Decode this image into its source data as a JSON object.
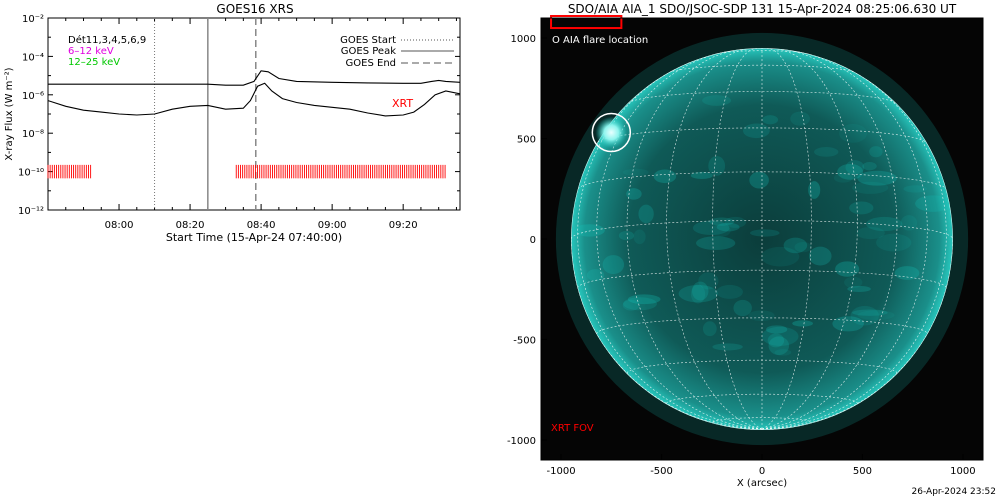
{
  "chart_data": [
    {
      "type": "line",
      "title": "GOES16 XRS",
      "xlabel": "Start Time (15-Apr-24 07:40:00)",
      "ylabel": "X-ray Flux (W m⁻²)",
      "yscale": "log",
      "ylim_exponent": [
        -12,
        -2
      ],
      "y_tick_labels": [
        "10⁻²",
        "10⁻⁴",
        "10⁻⁶",
        "10⁻⁸",
        "10⁻¹⁰",
        "10⁻¹²"
      ],
      "y_tick_exponents": [
        -2,
        -4,
        -6,
        -8,
        -10,
        -12
      ],
      "xlim_minutes_after_0740": [
        0,
        116
      ],
      "x_tick_labels": [
        "08:00",
        "08:20",
        "08:40",
        "09:00",
        "09:20"
      ],
      "x_tick_minutes": [
        20,
        40,
        60,
        80,
        100
      ],
      "info_text": [
        "Dét11,3,4,5,6,9",
        "6–12 keV",
        "12–25 keV"
      ],
      "info_colors": [
        "#000000",
        "#e000e0",
        "#00c800"
      ],
      "legend": [
        {
          "label": "GOES Start",
          "style": "dotted"
        },
        {
          "label": "GOES Peak",
          "style": "solid"
        },
        {
          "label": "GOES End",
          "style": "dashed"
        }
      ],
      "legend_placement": "top-right",
      "vlines_minutes": {
        "start": 30,
        "peak": 45,
        "end": 58.5
      },
      "annotation": "XRT",
      "annotation_color": "#ff0000",
      "xrt_coverage_minutes": [
        [
          0,
          12
        ],
        [
          53,
          112
        ]
      ],
      "series": [
        {
          "color": "#000000",
          "x_minutes": [
            0,
            10,
            20,
            30,
            40,
            45,
            50,
            55,
            58,
            60,
            62,
            65,
            70,
            80,
            90,
            100,
            105,
            108,
            110,
            112,
            116
          ],
          "y_exponent": [
            -5.45,
            -5.45,
            -5.45,
            -5.45,
            -5.45,
            -5.45,
            -5.5,
            -5.5,
            -5.3,
            -4.75,
            -4.8,
            -5.15,
            -5.3,
            -5.35,
            -5.38,
            -5.4,
            -5.4,
            -5.3,
            -5.25,
            -5.3,
            -5.35
          ]
        },
        {
          "color": "#000000",
          "x_minutes": [
            0,
            5,
            10,
            15,
            20,
            25,
            30,
            35,
            40,
            45,
            50,
            55,
            57,
            59,
            61,
            63,
            66,
            70,
            75,
            80,
            85,
            90,
            95,
            100,
            103,
            106,
            109,
            112,
            116
          ],
          "y_exponent": [
            -6.3,
            -6.6,
            -6.8,
            -6.9,
            -7.0,
            -7.05,
            -7.0,
            -6.75,
            -6.6,
            -6.55,
            -6.75,
            -6.7,
            -6.3,
            -5.55,
            -5.4,
            -5.8,
            -6.2,
            -6.4,
            -6.55,
            -6.65,
            -6.75,
            -6.95,
            -7.1,
            -7.05,
            -6.9,
            -6.5,
            -6.0,
            -5.8,
            -5.95
          ]
        }
      ]
    },
    {
      "type": "image",
      "title": "SDO/AIA AIA_1 SDO/JSOC-SDP 131 15-Apr-2024 08:25:06.630 UT",
      "xlabel": "X (arcsec)",
      "ylabel": "",
      "xlim": [
        -1100,
        1100
      ],
      "ylim": [
        -1100,
        1100
      ],
      "x_tick_labels": [
        "-1000",
        "-500",
        "0",
        "500",
        "1000"
      ],
      "x_ticks": [
        -1000,
        -500,
        0,
        500,
        1000
      ],
      "y_tick_labels": [
        "1000",
        "500",
        "0",
        "-500",
        "-1000"
      ],
      "y_ticks": [
        1000,
        500,
        0,
        -500,
        -1000
      ],
      "legend_text": "O AIA flare location",
      "flare_location_arcsec": [
        -750,
        530
      ],
      "disk_radius_arcsec": 950,
      "xrt_fov_label": "XRT FOV",
      "xrt_fov_arcsec": [
        [
          -1050,
          -700
        ],
        [
          1050,
          1110
        ]
      ],
      "xrt_color": "#ff0000",
      "disk_color": "#14c8be",
      "grid": true,
      "timestamp": "26-Apr-2024 23:52"
    }
  ]
}
